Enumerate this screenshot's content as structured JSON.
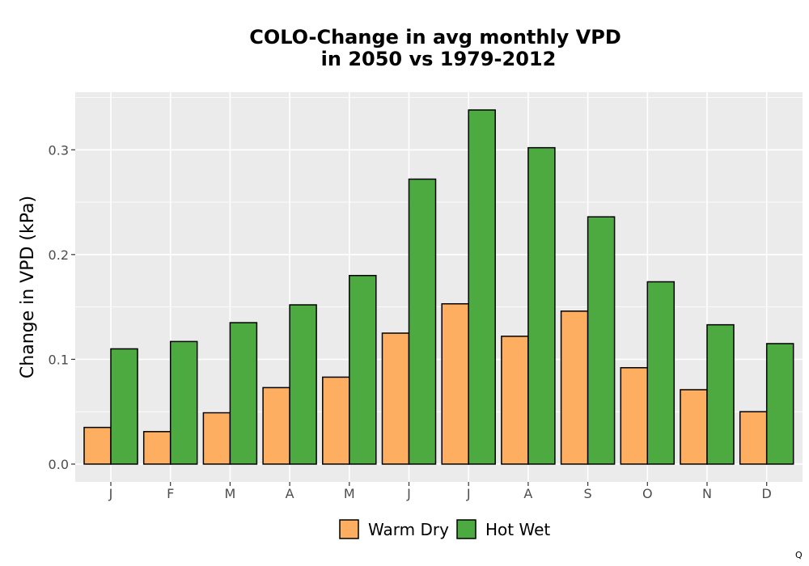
{
  "chart_data": {
    "type": "bar",
    "title_line1": "COLO-Change in avg monthly VPD",
    "title_line2": "in 2050 vs 1979-2012",
    "xlabel": "",
    "ylabel": "Change in VPD (kPa)",
    "categories": [
      "J",
      "F",
      "M",
      "A",
      "M",
      "J",
      "J",
      "A",
      "S",
      "O",
      "N",
      "D"
    ],
    "series": [
      {
        "name": "Warm Dry",
        "color": "#FDAE61",
        "values": [
          0.035,
          0.031,
          0.049,
          0.073,
          0.083,
          0.125,
          0.153,
          0.122,
          0.146,
          0.092,
          0.071,
          0.05
        ]
      },
      {
        "name": "Hot Wet",
        "color": "#4DAA40",
        "values": [
          0.11,
          0.117,
          0.135,
          0.152,
          0.18,
          0.272,
          0.338,
          0.302,
          0.236,
          0.174,
          0.133,
          0.115
        ]
      }
    ],
    "ylim": [
      -0.017,
      0.355
    ],
    "yticks": [
      "0.0",
      "0.1",
      "0.2",
      "0.3"
    ],
    "grid": true,
    "legend_position": "bottom"
  },
  "corner_mark": "Q",
  "colors": {
    "panel_background": "#EBEBEB",
    "grid": "#FFFFFF",
    "bar_outline": "#000000"
  }
}
